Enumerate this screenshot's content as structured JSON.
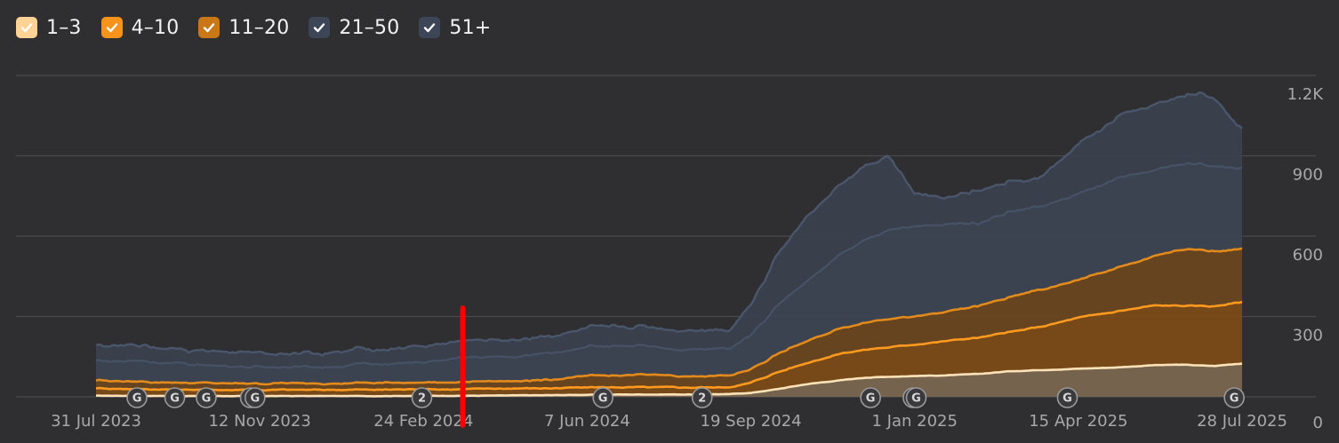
{
  "legend": [
    {
      "label": "1–3",
      "color": "#ffd296",
      "checked": true
    },
    {
      "label": "4–10",
      "color": "#f7931a",
      "checked": true
    },
    {
      "label": "11–20",
      "color": "#c97717",
      "checked": true
    },
    {
      "label": "21–50",
      "color": "#3c4657",
      "checked": true
    },
    {
      "label": "51+",
      "color": "#3c4657",
      "checked": true
    }
  ],
  "chart_data": {
    "type": "area",
    "stacked": true,
    "x_tick_labels": [
      "31 Jul 2023",
      "12 Nov 2023",
      "24 Feb 2024",
      "7 Jun 2024",
      "19 Sep 2024",
      "1 Jan 2025",
      "15 Apr 2025",
      "28 Jul 2025"
    ],
    "x_tick_dates": [
      "2023-07-31",
      "2023-11-12",
      "2024-02-24",
      "2024-06-07",
      "2024-09-19",
      "2025-01-01",
      "2025-04-15",
      "2025-07-28"
    ],
    "x_range": [
      "2023-07-31",
      "2025-07-28"
    ],
    "y_tick_labels": [
      "0",
      "300",
      "600",
      "900",
      "1.2K"
    ],
    "ylim": [
      0,
      1200
    ],
    "grid": true,
    "y_axis_position": "right",
    "dates": [
      "2023-07-31",
      "2023-09-01",
      "2023-10-01",
      "2023-11-12",
      "2023-12-15",
      "2024-01-20",
      "2024-02-24",
      "2024-03-20",
      "2024-04-20",
      "2024-05-15",
      "2024-06-07",
      "2024-07-10",
      "2024-08-10",
      "2024-09-05",
      "2024-09-19",
      "2024-10-05",
      "2024-10-25",
      "2024-11-15",
      "2024-12-01",
      "2024-12-15",
      "2025-01-01",
      "2025-01-20",
      "2025-02-10",
      "2025-03-01",
      "2025-03-20",
      "2025-04-15",
      "2025-05-10",
      "2025-06-01",
      "2025-06-20",
      "2025-07-10",
      "2025-07-28"
    ],
    "series": [
      {
        "name": "1–3",
        "color": "#ffd296",
        "values": [
          4,
          4,
          3,
          3,
          3,
          3,
          4,
          4,
          5,
          6,
          8,
          9,
          9,
          10,
          15,
          28,
          48,
          62,
          72,
          75,
          78,
          80,
          85,
          95,
          100,
          105,
          110,
          118,
          120,
          115,
          125
        ]
      },
      {
        "name": "4–10",
        "color": "#f7931a",
        "values": [
          28,
          25,
          24,
          23,
          23,
          24,
          25,
          25,
          26,
          26,
          27,
          27,
          26,
          26,
          38,
          62,
          80,
          100,
          105,
          110,
          118,
          128,
          135,
          145,
          160,
          190,
          210,
          222,
          220,
          223,
          230
        ]
      },
      {
        "name": "11–20",
        "color": "#c97717",
        "values": [
          30,
          28,
          25,
          24,
          24,
          25,
          26,
          26,
          28,
          32,
          42,
          46,
          42,
          44,
          50,
          68,
          82,
          95,
          102,
          108,
          105,
          108,
          118,
          128,
          138,
          140,
          162,
          182,
          210,
          205,
          200
        ]
      },
      {
        "name": "21–50",
        "color": "#3c4657",
        "values": [
          73,
          78,
          68,
          62,
          62,
          70,
          75,
          90,
          90,
          100,
          110,
          105,
          100,
          100,
          130,
          180,
          225,
          275,
          310,
          330,
          335,
          330,
          310,
          320,
          310,
          320,
          330,
          320,
          320,
          320,
          300
        ]
      },
      {
        "name": "51+",
        "color": "#3c4657",
        "values": [
          55,
          58,
          55,
          53,
          52,
          55,
          60,
          62,
          63,
          65,
          68,
          70,
          75,
          70,
          115,
          190,
          245,
          260,
          275,
          277,
          124,
          95,
          122,
          110,
          100,
          185,
          230,
          246,
          260,
          262,
          148
        ]
      }
    ],
    "annotations": [
      {
        "label": "G",
        "date": "2023-08-26"
      },
      {
        "label": "G",
        "date": "2023-09-19"
      },
      {
        "label": "G",
        "date": "2023-10-09"
      },
      {
        "label": "G",
        "date": "2023-11-06"
      },
      {
        "label": "G",
        "date": "2023-11-09"
      },
      {
        "label": "2",
        "date": "2024-02-23"
      },
      {
        "label": "G",
        "date": "2024-06-17"
      },
      {
        "label": "2",
        "date": "2024-08-19"
      },
      {
        "label": "G",
        "date": "2024-12-04"
      },
      {
        "label": "G",
        "date": "2024-12-31"
      },
      {
        "label": "G",
        "date": "2025-01-02"
      },
      {
        "label": "G",
        "date": "2025-04-08"
      },
      {
        "label": "G",
        "date": "2025-07-23"
      }
    ],
    "marker": {
      "date": "2024-03-20",
      "color": "#ff0000"
    }
  }
}
